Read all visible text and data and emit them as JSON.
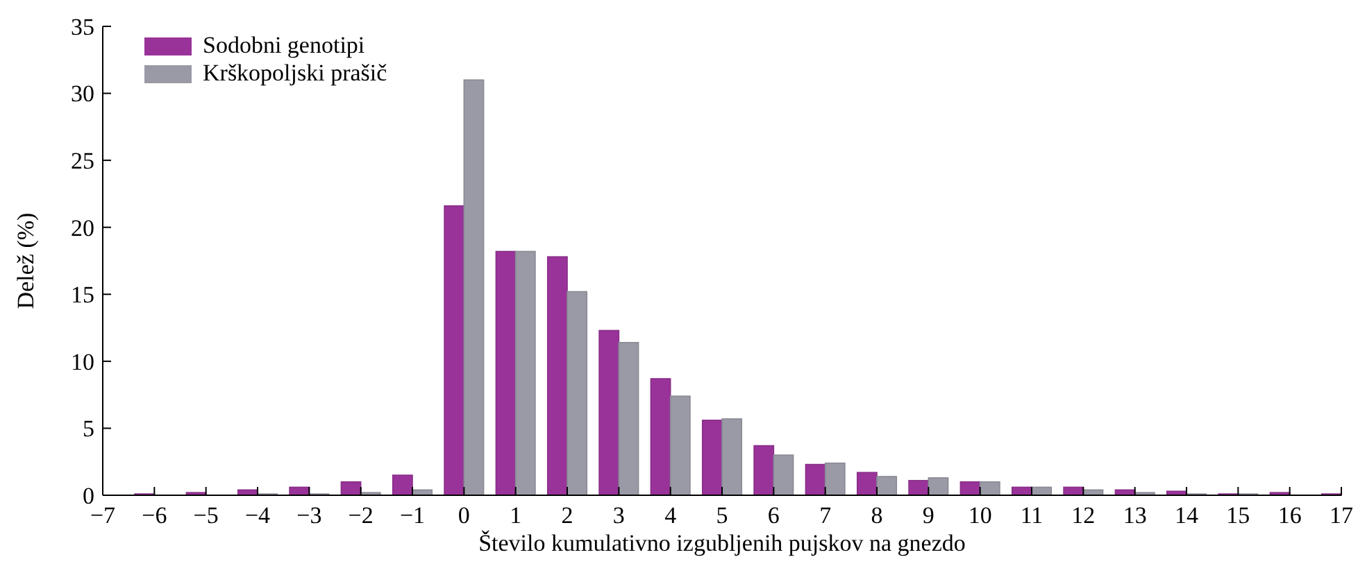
{
  "chart_data": {
    "type": "bar",
    "xlabel": "Število kumulativno izgubljenih pujskov na gnezdo",
    "ylabel": "Delež (%)",
    "x": [
      -6,
      -5,
      -4,
      -3,
      -2,
      -1,
      0,
      1,
      2,
      3,
      4,
      5,
      6,
      7,
      8,
      9,
      10,
      11,
      12,
      13,
      14,
      15,
      16,
      17
    ],
    "series": [
      {
        "name": "Sodobni genotipi",
        "color": "#993399",
        "values": [
          0.1,
          0.2,
          0.4,
          0.6,
          1.0,
          1.5,
          21.6,
          18.2,
          17.8,
          12.3,
          8.7,
          5.6,
          3.7,
          2.3,
          1.7,
          1.1,
          1.0,
          0.6,
          0.6,
          0.4,
          0.3,
          0.1,
          0.2,
          0.1
        ]
      },
      {
        "name": "Krškopoljski prašič",
        "color": "#9a9aa6",
        "values": [
          0,
          0,
          0.1,
          0.1,
          0.2,
          0.4,
          31.0,
          18.2,
          15.2,
          11.4,
          7.4,
          5.7,
          3.0,
          2.4,
          1.4,
          1.3,
          1.0,
          0.6,
          0.4,
          0.2,
          0.1,
          0.1,
          0,
          0
        ]
      }
    ],
    "xlim": [
      -7,
      17
    ],
    "xticks": [
      {
        "value": -7,
        "label": "−7"
      },
      {
        "value": -6,
        "label": "−6"
      },
      {
        "value": -5,
        "label": "−5"
      },
      {
        "value": -4,
        "label": "−4"
      },
      {
        "value": -3,
        "label": "−3"
      },
      {
        "value": -2,
        "label": "−2"
      },
      {
        "value": -1,
        "label": "−1"
      },
      0,
      1,
      2,
      3,
      4,
      5,
      6,
      7,
      8,
      9,
      10,
      11,
      12,
      13,
      14,
      15,
      16,
      17
    ],
    "ylim": [
      0,
      35
    ],
    "yticks": [
      0,
      5,
      10,
      15,
      20,
      25,
      30,
      35
    ],
    "legend": "top left",
    "grid": false
  }
}
